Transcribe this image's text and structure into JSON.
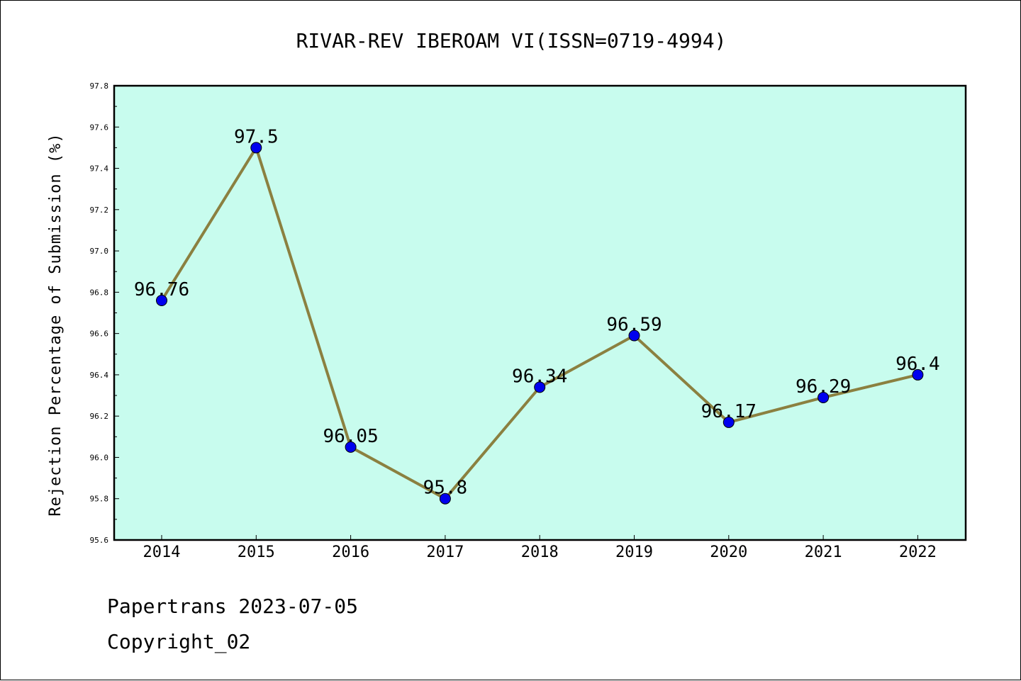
{
  "chart_data": {
    "type": "line",
    "title": "RIVAR-REV IBEROAM VI(ISSN=0719-4994)",
    "xlabel": "",
    "ylabel": "Rejection Percentage of Submission (%)",
    "categories": [
      "2014",
      "2015",
      "2016",
      "2017",
      "2018",
      "2019",
      "2020",
      "2021",
      "2022"
    ],
    "series": [
      {
        "values": [
          96.76,
          97.5,
          96.05,
          95.8,
          96.34,
          96.59,
          96.17,
          96.29,
          96.4
        ],
        "data_labels": [
          "96.76",
          "97.5",
          "96.05",
          "95.8",
          "96.34",
          "96.59",
          "96.17",
          "96.29",
          "96.4"
        ]
      }
    ],
    "ylim": [
      95.6,
      97.8
    ],
    "yticks": [
      "95.6",
      "95.8",
      "96.0",
      "96.2",
      "96.4",
      "96.6",
      "96.8",
      "97.0",
      "97.2",
      "97.4",
      "97.6",
      "97.8"
    ],
    "grid": false,
    "legend": "none",
    "colors": {
      "plot_background": "#c8fcee",
      "line": "#8b8040",
      "marker": "#0000ee"
    }
  },
  "footer": {
    "line1": "Papertrans 2023-07-05",
    "line2": "Copyright_02"
  }
}
